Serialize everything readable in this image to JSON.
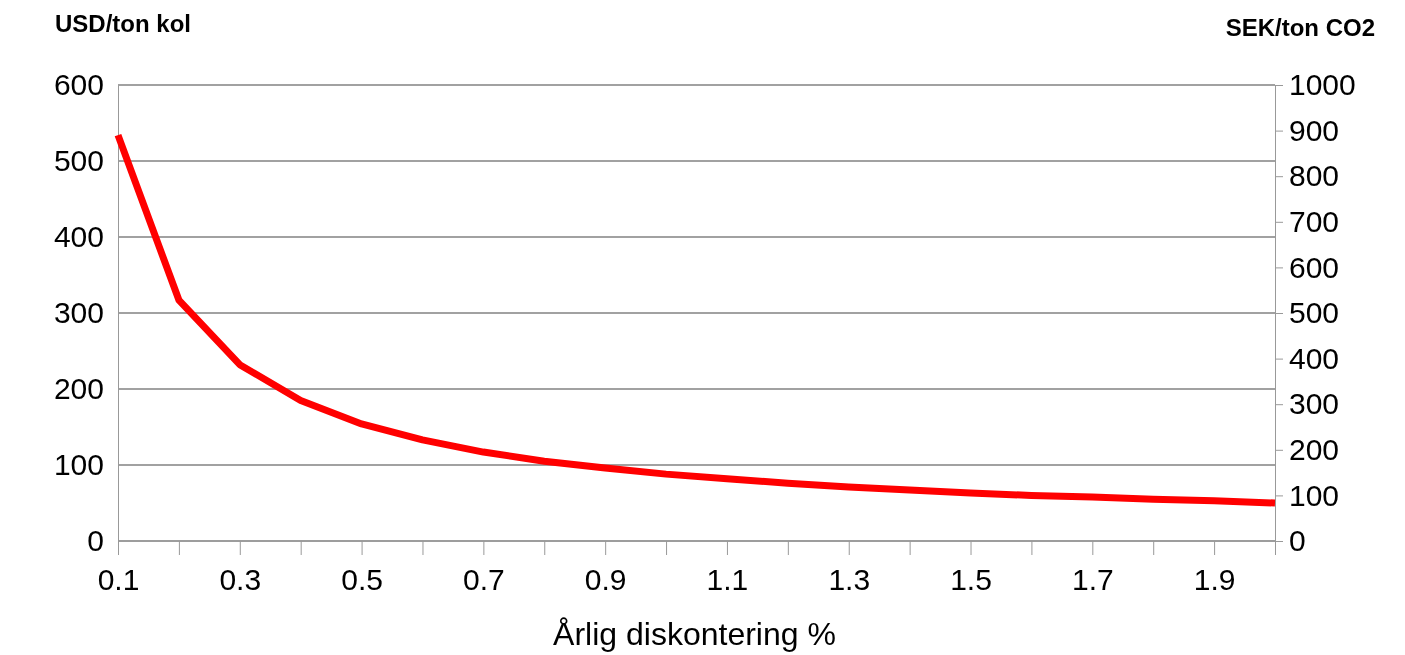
{
  "chart_data": {
    "type": "line",
    "ylabel": "USD/ton kol",
    "y2label": "SEK/ton CO2",
    "xlabel": "Årlig diskontering %",
    "x": [
      0.1,
      0.2,
      0.3,
      0.4,
      0.5,
      0.6,
      0.7,
      0.8,
      0.9,
      1.0,
      1.1,
      1.2,
      1.3,
      1.4,
      1.5,
      1.6,
      1.7,
      1.8,
      1.9,
      2.0
    ],
    "series": [
      {
        "color": "#ff0000",
        "values": [
          534,
          317,
          232,
          185,
          154,
          133,
          117,
          105,
          96,
          88,
          82,
          76,
          71,
          67,
          63,
          60,
          58,
          55,
          53,
          50
        ]
      }
    ],
    "xlim": [
      0.1,
      2.0
    ],
    "xticks": [
      0.1,
      {
        "value": 0.2,
        "label": null
      },
      0.3,
      {
        "value": 0.4,
        "label": null
      },
      0.5,
      {
        "value": 0.6,
        "label": null
      },
      0.7,
      {
        "value": 0.8,
        "label": null
      },
      0.9,
      {
        "value": 1.0,
        "label": null
      },
      1.1,
      {
        "value": 1.2,
        "label": null
      },
      1.3,
      {
        "value": 1.4,
        "label": null
      },
      1.5,
      {
        "value": 1.6,
        "label": null
      },
      1.7,
      {
        "value": 1.8,
        "label": null
      },
      1.9,
      {
        "value": 2.0,
        "label": null
      }
    ],
    "ylim": [
      0,
      600
    ],
    "yticks": [
      0,
      100,
      200,
      300,
      400,
      500,
      600
    ],
    "y2lim": [
      0,
      1000
    ],
    "y2ticks": [
      0,
      100,
      200,
      300,
      400,
      500,
      600,
      700,
      800,
      900,
      1000
    ],
    "grid": "y",
    "marker": "none",
    "line_style": "solid"
  }
}
